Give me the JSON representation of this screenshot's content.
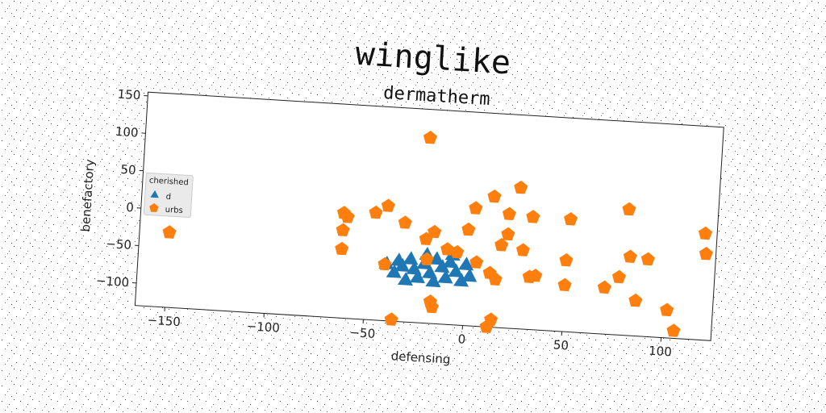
{
  "chart_data": {
    "type": "scatter",
    "suptitle": "winglike",
    "title": "dermatherm",
    "xlabel": "defensing",
    "ylabel": "benefactory",
    "xlim": [
      -165,
      125
    ],
    "ylim": [
      -130,
      155
    ],
    "xticks": [
      -150,
      -100,
      -50,
      0,
      50,
      100
    ],
    "yticks": [
      -100,
      -50,
      0,
      50,
      100,
      150
    ],
    "grid": false,
    "rotation_deg": 3.5,
    "legend": {
      "title": "cherished",
      "placement": "center-left",
      "entries": [
        {
          "label": "d",
          "marker": "triangle",
          "color": "#1f77b4"
        },
        {
          "label": "urbs",
          "marker": "pentagon",
          "color": "#ff7f0e"
        }
      ]
    },
    "series": [
      {
        "name": "d",
        "marker": "triangle",
        "color": "#1f77b4",
        "points": [
          [
            -40,
            -55
          ],
          [
            -36,
            -66
          ],
          [
            -32,
            -57
          ],
          [
            -28,
            -47
          ],
          [
            -26,
            -60
          ],
          [
            -24,
            -71
          ],
          [
            -21,
            -52
          ],
          [
            -18,
            -64
          ],
          [
            -15,
            -45
          ],
          [
            -12,
            -55
          ],
          [
            -10,
            -69
          ],
          [
            -7,
            -38
          ],
          [
            -5,
            -60
          ],
          [
            -2,
            -72
          ],
          [
            0,
            -50
          ],
          [
            2,
            -65
          ],
          [
            -30,
            -75
          ],
          [
            -16,
            -75
          ],
          [
            -8,
            -48
          ],
          [
            -34,
            -50
          ],
          [
            -20,
            -40
          ]
        ]
      },
      {
        "name": "urbs",
        "marker": "pentagon",
        "color": "#ff7f0e",
        "points": [
          [
            -150,
            -30
          ],
          [
            -63,
            10
          ],
          [
            -61,
            5
          ],
          [
            -63,
            -13
          ],
          [
            -63,
            -38
          ],
          [
            -47,
            13
          ],
          [
            -41,
            23
          ],
          [
            -41,
            -55
          ],
          [
            -32,
            2
          ],
          [
            -22,
            117
          ],
          [
            -21,
            -18
          ],
          [
            -17,
            -8
          ],
          [
            -20,
            -45
          ],
          [
            -16,
            -108
          ],
          [
            -17,
            -101
          ],
          [
            -10,
            -30
          ],
          [
            -5,
            -33
          ],
          [
            0,
            -2
          ],
          [
            3,
            27
          ],
          [
            5,
            -45
          ],
          [
            12,
            44
          ],
          [
            12,
            -58
          ],
          [
            15,
            -66
          ],
          [
            17,
            -20
          ],
          [
            20,
            22
          ],
          [
            20,
            -5
          ],
          [
            25,
            58
          ],
          [
            28,
            -25
          ],
          [
            32,
            -60
          ],
          [
            32,
            20
          ],
          [
            35,
            -58
          ],
          [
            50,
            -35
          ],
          [
            50,
            -68
          ],
          [
            51,
            20
          ],
          [
            12,
            -130
          ],
          [
            14,
            -120
          ],
          [
            4,
            -133
          ],
          [
            -36,
            -128
          ],
          [
            70,
            -68
          ],
          [
            77,
            -53
          ],
          [
            80,
            38
          ],
          [
            82,
            -25
          ],
          [
            86,
            -83
          ],
          [
            91,
            -27
          ],
          [
            102,
            -93
          ],
          [
            106,
            -120
          ],
          [
            119,
            12
          ],
          [
            120,
            -15
          ]
        ]
      }
    ]
  }
}
